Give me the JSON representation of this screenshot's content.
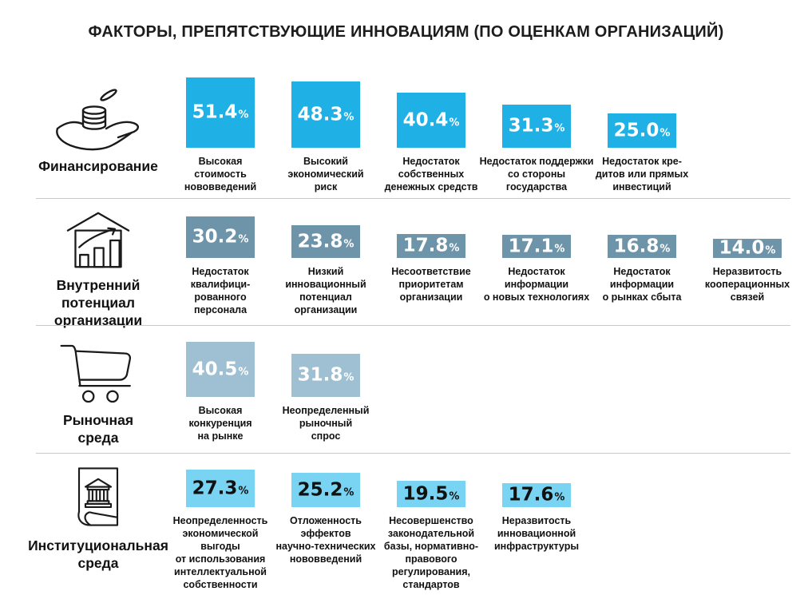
{
  "title": "ФАКТОРЫ, ПРЕПЯТСТВУЮЩИЕ ИННОВАЦИЯМ (ПО ОЦЕНКАМ ОРГАНИЗАЦИЙ)",
  "colors": {
    "financing_bar": "#1fb0e6",
    "internal_potential_bar": "#6e94a9",
    "market_environment_bar": "#9fbfd2",
    "institutional_environment_bar": "#79d3f2",
    "value_text_light": "#ffffff",
    "value_text_dark": "#111111",
    "separator": "#c9c9c9",
    "text": "#111111"
  },
  "chart_data": {
    "type": "bar",
    "title": "ФАКТОРЫ, ПРЕПЯТСТВУЮЩИЕ ИННОВАЦИЯМ (ПО ОЦЕНКАМ ОРГАНИЗАЦИЙ)",
    "unit": "%",
    "legend_position": "none",
    "grid": false,
    "orientation": "vertical-bars-grouped-by-category-rows",
    "groups": [
      {
        "category": "Финансирование",
        "icon": "hand-coins-icon",
        "color": "#1fb0e6",
        "value_color": "#ffffff",
        "bars": [
          {
            "value": 51.4,
            "value_label": "51.4",
            "label": "Высокая\nстоимость\nнововведений"
          },
          {
            "value": 48.3,
            "value_label": "48.3",
            "label": "Высокий\nэкономический\nриск"
          },
          {
            "value": 40.4,
            "value_label": "40.4",
            "label": "Недостаток\nсобственных\nденежных средств"
          },
          {
            "value": 31.3,
            "value_label": "31.3",
            "label": "Недостаток поддержки\nсо стороны\nгосударства"
          },
          {
            "value": 25.0,
            "value_label": "25.0",
            "label": "Недостаток кре-\nдитов или прямых\nинвестиций"
          }
        ]
      },
      {
        "category": "Внутренний\nпотенциал\nорганизации",
        "icon": "house-growth-icon",
        "color": "#6e94a9",
        "value_color": "#ffffff",
        "bars": [
          {
            "value": 30.2,
            "value_label": "30.2",
            "label": "Недостаток\nквалифици-\nрованного\nперсонала"
          },
          {
            "value": 23.8,
            "value_label": "23.8",
            "label": "Низкий\nинновационный\nпотенциал\nорганизации"
          },
          {
            "value": 17.8,
            "value_label": "17.8",
            "label": "Несоответствие\nприоритетам\nорганизации"
          },
          {
            "value": 17.1,
            "value_label": "17.1",
            "label": "Недостаток\nинформации\nо новых технологиях"
          },
          {
            "value": 16.8,
            "value_label": "16.8",
            "label": "Недостаток\nинформации\nо рынках сбыта"
          },
          {
            "value": 14.0,
            "value_label": "14.0",
            "label": "Неразвитость\nкооперационных\nсвязей"
          }
        ]
      },
      {
        "category": "Рыночная\nсреда",
        "icon": "shopping-cart-icon",
        "color": "#9fbfd2",
        "value_color": "#ffffff",
        "bars": [
          {
            "value": 40.5,
            "value_label": "40.5",
            "label": "Высокая\nконкуренция\nна рынке"
          },
          {
            "value": 31.8,
            "value_label": "31.8",
            "label": "Неопределенный\nрыночный\nспрос"
          }
        ]
      },
      {
        "category": "Институциональная\nсреда",
        "icon": "bank-document-icon",
        "color": "#79d3f2",
        "value_color": "#111111",
        "bars": [
          {
            "value": 27.3,
            "value_label": "27.3",
            "label": "Неопределенность\nэкономической\nвыгоды\nот использования\nинтеллектуальной\nсобственности"
          },
          {
            "value": 25.2,
            "value_label": "25.2",
            "label": "Отложенность\nэффектов\nнаучно-технических\nнововведений"
          },
          {
            "value": 19.5,
            "value_label": "19.5",
            "label": "Несовершенство\nзаконодательной\nбазы, нормативно-\nправового\nрегулирования,\nстандартов"
          },
          {
            "value": 17.6,
            "value_label": "17.6",
            "label": "Неразвитость\nинновационной\nинфраструктуры"
          }
        ]
      }
    ]
  }
}
